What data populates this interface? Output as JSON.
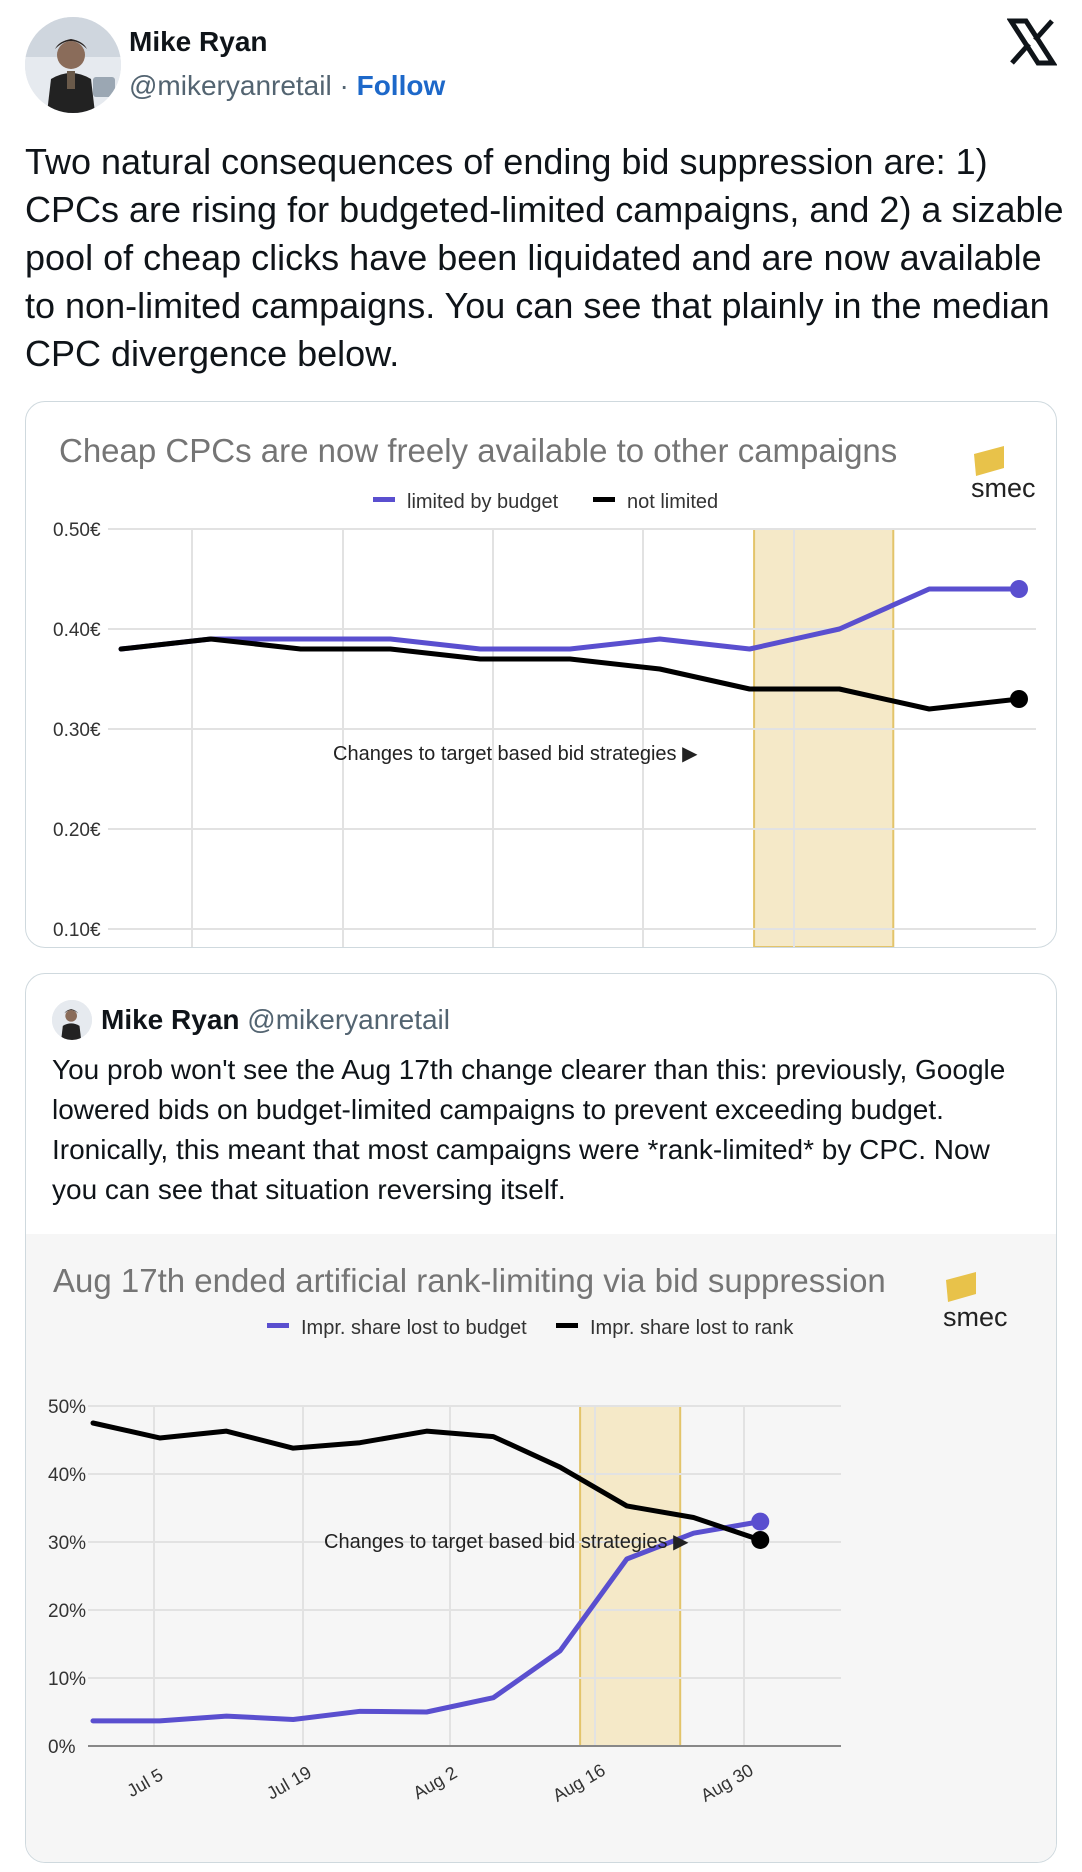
{
  "tweet": {
    "author_name": "Mike Ryan",
    "author_handle": "@mikeryanretail",
    "separator": "·",
    "follow_label": "Follow",
    "text": "Two natural consequences of ending bid suppression are: 1) CPCs are rising for budgeted-limited campaigns, and 2) a sizable pool of cheap clicks have been liquidated and are now available to non-limited campaigns. You can see that plainly in the median CPC divergence below."
  },
  "quoted_tweet": {
    "author_name": "Mike Ryan",
    "author_handle": "@mikeryanretail",
    "text": "You prob won't see the Aug 17th change clearer than this: previously, Google lowered bids on budget-limited campaigns to prevent exceeding budget. Ironically, this meant that most campaigns were *rank-limited* by CPC. Now you can see that situation reversing itself."
  },
  "icons": {
    "x_logo": "x-logo-icon",
    "avatar": "avatar-photo",
    "smec_logo": "smec-logo-icon"
  },
  "colors": {
    "follow": "#1d68c9",
    "series_budget": "#5a4fcf",
    "series_other": "#000000",
    "highlight": "#f5e9c8",
    "highlight_border": "#e3c46a"
  },
  "chart_data": [
    {
      "type": "line",
      "title": "Cheap CPCs are now freely available to other campaigns",
      "brand": "smec",
      "annotation": "Changes to target based bid strategies ▶",
      "legend_position": "top",
      "grid": true,
      "yticks": [
        "0.50€",
        "0.40€",
        "0.30€",
        "0.20€",
        "0.10€"
      ],
      "ylim": [
        0,
        0.5
      ],
      "x": [
        0,
        1,
        2,
        3,
        4,
        5,
        6,
        7,
        8,
        9,
        10
      ],
      "highlight_range": [
        7.05,
        8.6
      ],
      "series": [
        {
          "name": "limited by budget",
          "color": "#5a4fcf",
          "values": [
            0.38,
            0.39,
            0.39,
            0.39,
            0.38,
            0.38,
            0.39,
            0.38,
            0.4,
            0.44,
            0.44
          ]
        },
        {
          "name": "not limited",
          "color": "#000000",
          "values": [
            0.38,
            0.39,
            0.38,
            0.38,
            0.37,
            0.37,
            0.36,
            0.34,
            0.34,
            0.32,
            0.33
          ]
        }
      ]
    },
    {
      "type": "line",
      "title": "Aug 17th ended artificial rank-limiting via bid suppression",
      "brand": "smec",
      "annotation": "Changes to target based bid strategies ▶",
      "legend_position": "top",
      "grid": true,
      "yticks": [
        "50%",
        "40%",
        "30%",
        "20%",
        "10%",
        "0%"
      ],
      "ylim": [
        0,
        50
      ],
      "xticks": [
        "Jul 5",
        "Jul 19",
        "Aug 2",
        "Aug 16",
        "Aug 30"
      ],
      "x": [
        0,
        1,
        2,
        3,
        4,
        5,
        6,
        7,
        8,
        9,
        10,
        11
      ],
      "highlight_range": [
        7.3,
        8.8
      ],
      "series": [
        {
          "name": "Impr. share lost to budget",
          "color": "#5a4fcf",
          "values": [
            3.7,
            3.7,
            4.4,
            3.9,
            5.1,
            5.0,
            7.1,
            14.0,
            27.5,
            31.3,
            33.0,
            33.0
          ]
        },
        {
          "name": "Impr. share lost to rank",
          "color": "#000000",
          "values": [
            47.5,
            45.3,
            46.3,
            43.8,
            44.6,
            46.3,
            45.5,
            41.0,
            35.3,
            33.6,
            30.3,
            30.3
          ]
        }
      ]
    }
  ]
}
